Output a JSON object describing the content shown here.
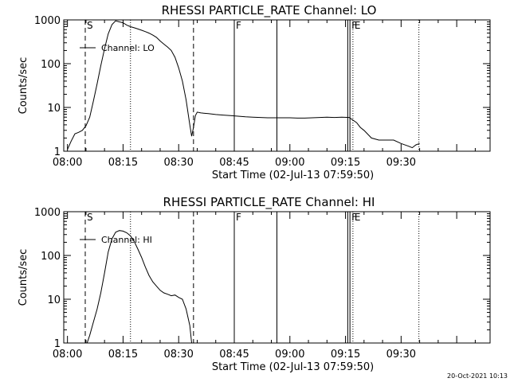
{
  "chart_data": [
    {
      "type": "line",
      "title": "RHESSI PARTICLE_RATE Channel: LO",
      "xlabel": "Start Time (02-Jul-13 07:59:50)",
      "ylabel": "Counts/sec",
      "yscale": "log",
      "xlim": [
        -1,
        114
      ],
      "ylim": [
        1,
        1000
      ],
      "x_tick_labels": [
        "08:00",
        "08:15",
        "08:30",
        "08:45",
        "09:00",
        "09:15",
        "09:30"
      ],
      "x_tick_values": [
        0,
        15,
        30,
        45,
        60,
        75,
        90
      ],
      "y_tick_labels": [
        "1",
        "10",
        "100",
        "1000"
      ],
      "y_tick_values": [
        1,
        10,
        100,
        1000
      ],
      "legend": {
        "entries": [
          "Channel: LO"
        ],
        "placement": "top-left"
      },
      "markers": [
        {
          "label": "S",
          "x": 4.8,
          "style": "dashed"
        },
        {
          "label": "",
          "x": 17,
          "style": "dotted"
        },
        {
          "label": "",
          "x": 34,
          "style": "dashed"
        },
        {
          "label": "F",
          "x": 45,
          "style": "solid"
        },
        {
          "label": "",
          "x": 56.5,
          "style": "solid"
        },
        {
          "label": "",
          "x": 75.6,
          "style": "solid"
        },
        {
          "label": "F",
          "x": 76.2,
          "style": "solid"
        },
        {
          "label": "E",
          "x": 77,
          "style": "dotted"
        },
        {
          "label": "",
          "x": 94.8,
          "style": "dotted"
        }
      ],
      "series": [
        {
          "name": "Channel: LO",
          "x": [
            0,
            1,
            2,
            3,
            4,
            5,
            6,
            7,
            8,
            9,
            10,
            11,
            12,
            13,
            14,
            15,
            16,
            17,
            18,
            19,
            20,
            21,
            22,
            23,
            24,
            25,
            26,
            27,
            28,
            29,
            30,
            31,
            32,
            33,
            33.5,
            34,
            34.5,
            35,
            36,
            38,
            40,
            42,
            44,
            46,
            48,
            50,
            52,
            54,
            56,
            58,
            60,
            62,
            64,
            66,
            68,
            70,
            72,
            74,
            76,
            78,
            79,
            80,
            82,
            84,
            86,
            88,
            90,
            92,
            93,
            94,
            95
          ],
          "y": [
            1.1,
            1.7,
            2.5,
            2.7,
            3.0,
            3.8,
            6,
            14,
            35,
            90,
            220,
            480,
            780,
            950,
            900,
            860,
            760,
            700,
            660,
            620,
            580,
            540,
            500,
            450,
            400,
            330,
            280,
            240,
            200,
            140,
            80,
            40,
            15,
            4,
            2.2,
            3.5,
            6.5,
            7.8,
            7.5,
            7.2,
            6.9,
            6.7,
            6.5,
            6.3,
            6.1,
            6.0,
            5.9,
            5.8,
            5.8,
            5.8,
            5.8,
            5.7,
            5.7,
            5.8,
            5.9,
            6.0,
            5.9,
            6.0,
            5.9,
            4.5,
            3.5,
            3.0,
            2.0,
            1.8,
            1.8,
            1.8,
            1.5,
            1.3,
            1.2,
            1.4,
            1.5
          ]
        }
      ]
    },
    {
      "type": "line",
      "title": "RHESSI PARTICLE_RATE Channel: HI",
      "xlabel": "Start Time (02-Jul-13 07:59:50)",
      "ylabel": "Counts/sec",
      "yscale": "log",
      "xlim": [
        -1,
        114
      ],
      "ylim": [
        1,
        1000
      ],
      "x_tick_labels": [
        "08:00",
        "08:15",
        "08:30",
        "08:45",
        "09:00",
        "09:15",
        "09:30"
      ],
      "x_tick_values": [
        0,
        15,
        30,
        45,
        60,
        75,
        90
      ],
      "y_tick_labels": [
        "1",
        "10",
        "100",
        "1000"
      ],
      "y_tick_values": [
        1,
        10,
        100,
        1000
      ],
      "legend": {
        "entries": [
          "Channel: HI"
        ],
        "placement": "top-left"
      },
      "markers": [
        {
          "label": "S",
          "x": 4.8,
          "style": "dashed"
        },
        {
          "label": "",
          "x": 17,
          "style": "dotted"
        },
        {
          "label": "",
          "x": 34,
          "style": "dashed"
        },
        {
          "label": "F",
          "x": 45,
          "style": "solid"
        },
        {
          "label": "",
          "x": 56.5,
          "style": "solid"
        },
        {
          "label": "",
          "x": 75.6,
          "style": "solid"
        },
        {
          "label": "F",
          "x": 76.2,
          "style": "solid"
        },
        {
          "label": "E",
          "x": 77,
          "style": "dotted"
        },
        {
          "label": "",
          "x": 94.8,
          "style": "dotted"
        }
      ],
      "series": [
        {
          "name": "Channel: HI",
          "x": [
            5.3,
            6,
            7,
            8,
            9,
            10,
            11,
            12,
            13,
            14,
            15,
            16,
            17,
            18,
            19,
            20,
            21,
            22,
            23,
            24,
            25,
            26,
            27,
            28,
            29,
            30,
            31,
            32,
            33,
            33.5
          ],
          "y": [
            1.0,
            1.5,
            3,
            6,
            14,
            40,
            120,
            240,
            340,
            370,
            360,
            330,
            280,
            210,
            140,
            90,
            55,
            35,
            25,
            20,
            16,
            14,
            13,
            12,
            12.5,
            11,
            10,
            6,
            2.5,
            1.0
          ]
        }
      ]
    }
  ],
  "footer": {
    "timestamp": "20-Oct-2021 10:13"
  }
}
